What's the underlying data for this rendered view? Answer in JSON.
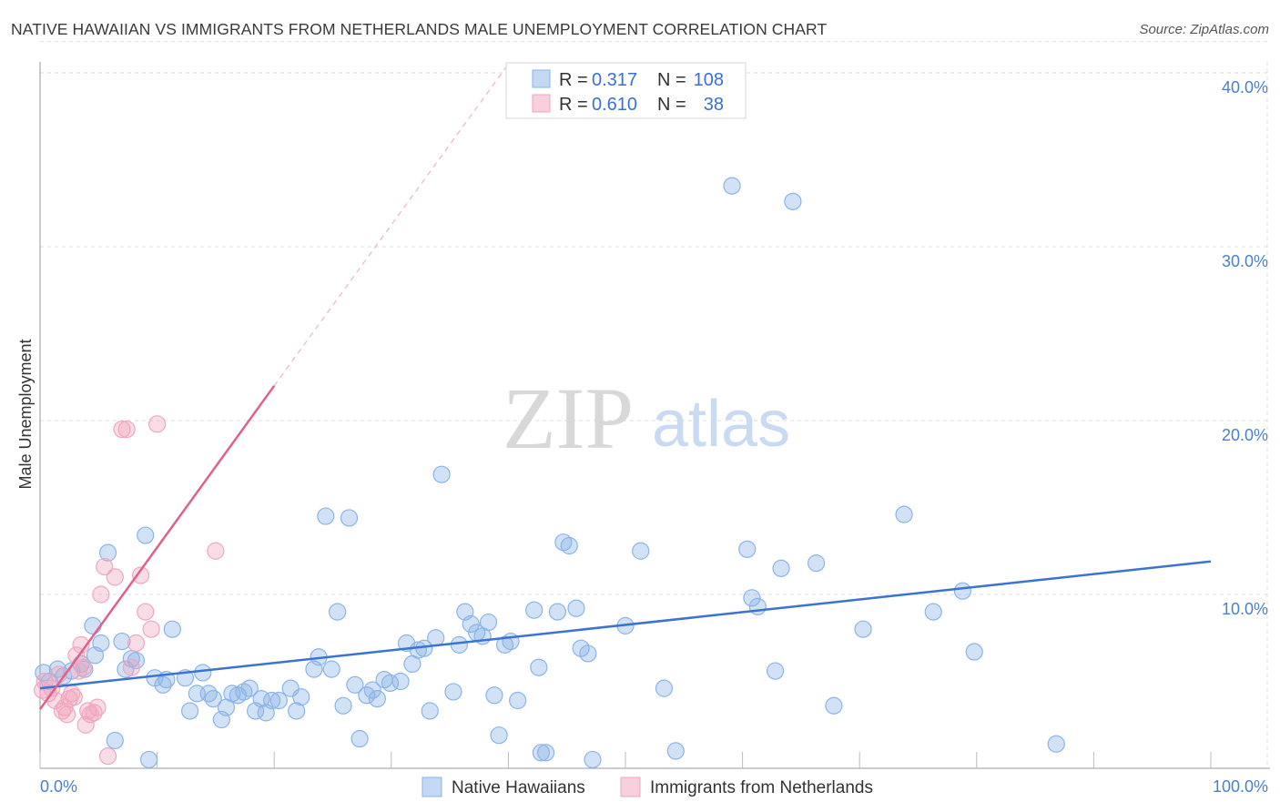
{
  "chart_data": {
    "type": "scatter",
    "title": "NATIVE HAWAIIAN VS IMMIGRANTS FROM NETHERLANDS MALE UNEMPLOYMENT CORRELATION CHART",
    "source": "Source: ZipAtlas.com",
    "ylabel": "Male Unemployment",
    "xlim": [
      0,
      100
    ],
    "ylim": [
      0,
      42
    ],
    "x_tick_labels": [
      "0.0%",
      "100.0%"
    ],
    "y_ticks": [
      10,
      20,
      30,
      40
    ],
    "y_tick_labels": [
      "10.0%",
      "20.0%",
      "30.0%",
      "40.0%"
    ],
    "watermark": {
      "part1": "ZIP",
      "part2": "atlas"
    },
    "legend": {
      "r_label": "R =",
      "n_label": "N =",
      "entries": [
        {
          "r": "0.317",
          "n": "108"
        },
        {
          "r": "0.610",
          "n": "38"
        }
      ]
    },
    "series": [
      {
        "name": "Native Hawaiians",
        "color": "#8ab4e8",
        "line_color": "#3a74d0",
        "trend": {
          "x0": 0,
          "y0": 4.6,
          "x1": 100,
          "y1": 11.9
        },
        "points": [
          [
            0.3,
            5.5
          ],
          [
            0.8,
            5.0
          ],
          [
            1.5,
            5.7
          ],
          [
            2.0,
            5.3
          ],
          [
            2.7,
            5.6
          ],
          [
            3.5,
            6.0
          ],
          [
            3.8,
            5.7
          ],
          [
            4.5,
            8.2
          ],
          [
            4.7,
            6.5
          ],
          [
            5.2,
            7.2
          ],
          [
            5.8,
            12.4
          ],
          [
            6.4,
            1.6
          ],
          [
            7.0,
            7.3
          ],
          [
            7.3,
            5.7
          ],
          [
            7.8,
            6.3
          ],
          [
            8.2,
            6.2
          ],
          [
            9.0,
            13.4
          ],
          [
            9.3,
            0.5
          ],
          [
            9.8,
            5.2
          ],
          [
            10.5,
            4.8
          ],
          [
            10.8,
            5.1
          ],
          [
            11.3,
            8.0
          ],
          [
            12.4,
            5.2
          ],
          [
            12.8,
            3.3
          ],
          [
            13.4,
            4.3
          ],
          [
            13.9,
            5.5
          ],
          [
            14.4,
            4.3
          ],
          [
            14.8,
            4.0
          ],
          [
            15.5,
            2.8
          ],
          [
            15.9,
            3.5
          ],
          [
            16.4,
            4.3
          ],
          [
            16.9,
            4.2
          ],
          [
            17.4,
            4.4
          ],
          [
            17.9,
            4.6
          ],
          [
            18.4,
            3.3
          ],
          [
            18.9,
            4.0
          ],
          [
            19.3,
            3.2
          ],
          [
            19.8,
            3.9
          ],
          [
            20.4,
            3.9
          ],
          [
            21.4,
            4.6
          ],
          [
            21.9,
            3.3
          ],
          [
            22.3,
            4.1
          ],
          [
            23.4,
            5.7
          ],
          [
            23.8,
            6.4
          ],
          [
            24.4,
            14.5
          ],
          [
            24.9,
            5.7
          ],
          [
            25.4,
            9.0
          ],
          [
            25.9,
            3.6
          ],
          [
            26.4,
            14.4
          ],
          [
            26.9,
            4.8
          ],
          [
            27.3,
            1.7
          ],
          [
            27.9,
            4.2
          ],
          [
            28.4,
            4.5
          ],
          [
            28.8,
            4.0
          ],
          [
            29.4,
            5.1
          ],
          [
            29.9,
            4.9
          ],
          [
            30.8,
            5.0
          ],
          [
            31.3,
            7.2
          ],
          [
            31.8,
            6.0
          ],
          [
            32.3,
            6.8
          ],
          [
            32.8,
            6.9
          ],
          [
            33.3,
            3.3
          ],
          [
            33.8,
            7.5
          ],
          [
            34.3,
            16.9
          ],
          [
            35.3,
            4.4
          ],
          [
            35.8,
            7.1
          ],
          [
            36.3,
            9.0
          ],
          [
            36.8,
            8.3
          ],
          [
            37.3,
            7.8
          ],
          [
            37.8,
            7.6
          ],
          [
            38.3,
            8.4
          ],
          [
            38.8,
            4.2
          ],
          [
            39.2,
            1.9
          ],
          [
            39.7,
            7.1
          ],
          [
            40.2,
            7.3
          ],
          [
            40.8,
            3.9
          ],
          [
            42.2,
            9.1
          ],
          [
            42.6,
            5.8
          ],
          [
            42.8,
            0.9
          ],
          [
            43.2,
            0.9
          ],
          [
            44.2,
            9.0
          ],
          [
            44.7,
            13.0
          ],
          [
            45.2,
            12.8
          ],
          [
            45.8,
            9.2
          ],
          [
            46.2,
            6.9
          ],
          [
            46.8,
            6.6
          ],
          [
            47.2,
            0.5
          ],
          [
            50.0,
            8.2
          ],
          [
            51.3,
            12.5
          ],
          [
            53.3,
            4.6
          ],
          [
            54.3,
            1.0
          ],
          [
            59.1,
            33.5
          ],
          [
            60.4,
            12.6
          ],
          [
            60.8,
            9.8
          ],
          [
            61.3,
            9.3
          ],
          [
            62.8,
            5.6
          ],
          [
            63.3,
            11.5
          ],
          [
            64.3,
            32.6
          ],
          [
            66.3,
            11.8
          ],
          [
            67.8,
            3.6
          ],
          [
            70.3,
            8.0
          ],
          [
            73.8,
            14.6
          ],
          [
            76.3,
            9.0
          ],
          [
            78.8,
            10.2
          ],
          [
            79.8,
            6.7
          ],
          [
            86.8,
            1.4
          ]
        ]
      },
      {
        "name": "Immigrants from Netherlands",
        "color": "#f0a6be",
        "line_color": "#e0608c",
        "trend": {
          "x0": 0,
          "y0": 3.4,
          "x1": 20,
          "y1": 22.0,
          "dash_x1": 40,
          "dash_y1": 40.5
        },
        "points": [
          [
            0.2,
            4.5
          ],
          [
            0.4,
            5.0
          ],
          [
            0.7,
            4.3
          ],
          [
            1.0,
            4.6
          ],
          [
            1.3,
            3.9
          ],
          [
            1.6,
            5.4
          ],
          [
            1.9,
            3.3
          ],
          [
            2.1,
            3.5
          ],
          [
            2.3,
            3.1
          ],
          [
            2.5,
            4.0
          ],
          [
            2.7,
            4.3
          ],
          [
            2.9,
            4.1
          ],
          [
            3.1,
            6.5
          ],
          [
            3.3,
            5.6
          ],
          [
            3.5,
            7.1
          ],
          [
            3.7,
            5.8
          ],
          [
            3.9,
            2.5
          ],
          [
            4.1,
            3.3
          ],
          [
            4.3,
            3.1
          ],
          [
            4.6,
            3.2
          ],
          [
            4.9,
            3.5
          ],
          [
            5.2,
            10.0
          ],
          [
            5.5,
            11.6
          ],
          [
            5.8,
            0.7
          ],
          [
            6.4,
            11.0
          ],
          [
            7.0,
            19.5
          ],
          [
            7.4,
            19.5
          ],
          [
            7.8,
            5.8
          ],
          [
            8.2,
            7.2
          ],
          [
            8.6,
            11.1
          ],
          [
            9.0,
            9.0
          ],
          [
            9.5,
            8.0
          ],
          [
            10.0,
            19.8
          ],
          [
            15.0,
            12.5
          ]
        ]
      }
    ]
  }
}
